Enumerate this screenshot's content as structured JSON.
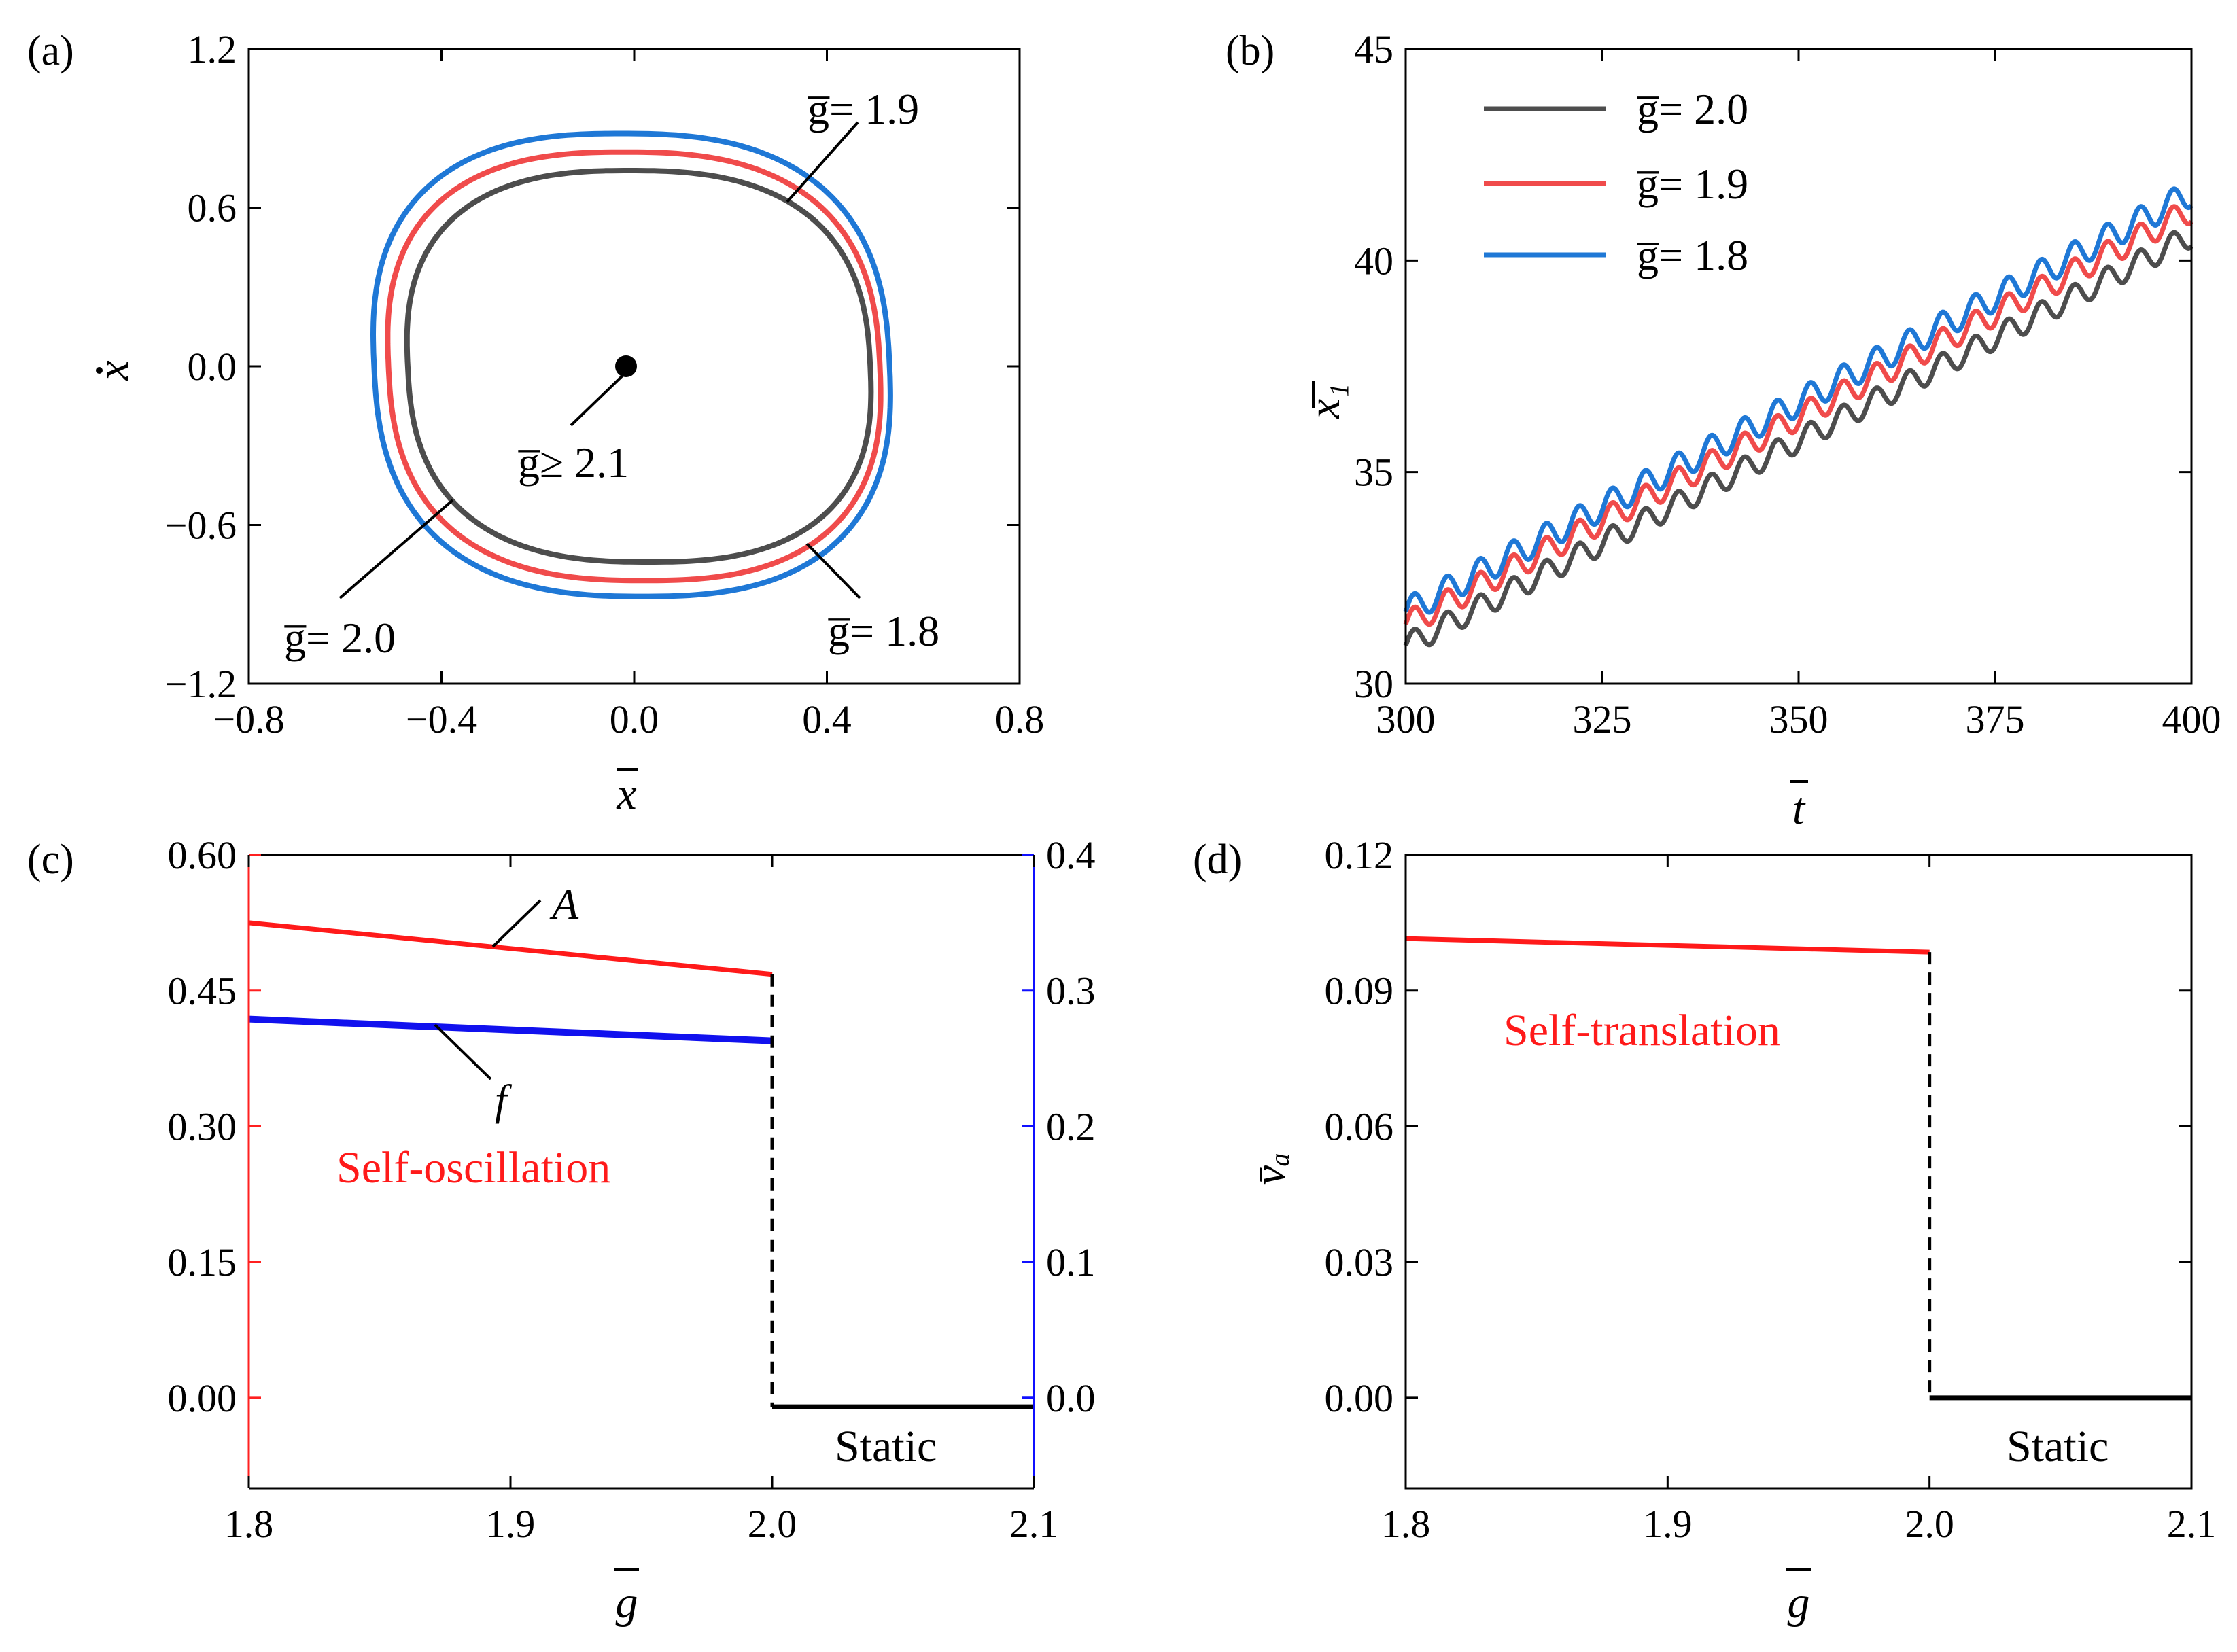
{
  "chart_data": [
    {
      "id": "a",
      "panel_label": "(a)",
      "type": "line",
      "description_kind": "phase-portrait",
      "xlabel": "x̄",
      "ylabel": "ẋ",
      "xlim": [
        -0.8,
        0.8
      ],
      "ylim": [
        -1.2,
        1.2
      ],
      "xticks": [
        "−0.8",
        "−0.4",
        "0.0",
        "0.4",
        "0.8"
      ],
      "yticks": [
        "−1.2",
        "−0.6",
        "0.0",
        "0.6",
        "1.2"
      ],
      "series": [
        {
          "name": "g = 2.0",
          "color": "#4d4d4d",
          "x_extent": [
            -0.47,
            0.49
          ],
          "y_extent": [
            -0.74,
            0.74
          ]
        },
        {
          "name": "g = 1.9",
          "color": "#f04b4b",
          "x_extent": [
            -0.51,
            0.51
          ],
          "y_extent": [
            -0.81,
            0.81
          ]
        },
        {
          "name": "g = 1.8",
          "color": "#1f78d6",
          "x_extent": [
            -0.54,
            0.53
          ],
          "y_extent": [
            -0.87,
            0.88
          ]
        }
      ],
      "fixed_point": {
        "x": 0.0,
        "y": 0.0
      },
      "annotations": [
        {
          "text": "g̅= 1.9"
        },
        {
          "text": "g̅≥ 2.1"
        },
        {
          "text": "g̅= 2.0"
        },
        {
          "text": "g̅= 1.8"
        }
      ]
    },
    {
      "id": "b",
      "panel_label": "(b)",
      "type": "line",
      "xlabel": "t̄",
      "ylabel": "x̄₁",
      "xlim": [
        300,
        400
      ],
      "ylim": [
        30,
        45
      ],
      "xticks": [
        "300",
        "325",
        "350",
        "375",
        "400"
      ],
      "yticks": [
        "30",
        "35",
        "40",
        "45"
      ],
      "oscillation_period": 4.2,
      "legend": [
        "g̅= 2.0",
        "g̅= 1.9",
        "g̅= 1.8"
      ],
      "legend_position": "top-left",
      "series": [
        {
          "name": "g̅= 2.0",
          "color": "#4d4d4d",
          "start": 30.9,
          "end": 40.6,
          "amplitude": 0.28
        },
        {
          "name": "g̅= 1.9",
          "color": "#f04b4b",
          "start": 31.4,
          "end": 41.2,
          "amplitude": 0.3
        },
        {
          "name": "g̅= 1.8",
          "color": "#1f78d6",
          "start": 31.7,
          "end": 41.6,
          "amplitude": 0.32
        }
      ]
    },
    {
      "id": "c",
      "panel_label": "(c)",
      "type": "line",
      "xlabel": "g",
      "xlim": [
        1.8,
        2.1
      ],
      "ylim_left": [
        -0.1,
        0.6
      ],
      "ylim_right": [
        -0.0667,
        0.4
      ],
      "xticks": [
        "1.8",
        "1.9",
        "2.0",
        "2.1"
      ],
      "yticks_left": [
        "0.60",
        "0.45",
        "0.30",
        "0.15",
        "0.00"
      ],
      "yticks_right": [
        "0.4",
        "0.3",
        "0.2",
        "0.1",
        "0.0"
      ],
      "left_axis_color": "#ff2020",
      "right_axis_color": "#1010ff",
      "series": [
        {
          "name": "A",
          "axis": "left",
          "color": "#ff1a1a",
          "x": [
            1.8,
            2.0
          ],
          "y": [
            0.525,
            0.468
          ]
        },
        {
          "name": "f",
          "axis": "right",
          "color": "#1111ee",
          "x": [
            1.8,
            2.0
          ],
          "y": [
            0.279,
            0.263
          ]
        },
        {
          "name": "static",
          "axis": "left",
          "color": "#000000",
          "x": [
            2.0,
            2.1
          ],
          "y": [
            -0.01,
            -0.01
          ]
        }
      ],
      "transition_x": 2.0,
      "labels": {
        "A": "A",
        "f": "f",
        "region": "Self-oscillation",
        "static": "Static"
      }
    },
    {
      "id": "d",
      "panel_label": "(d)",
      "type": "line",
      "xlabel": "g",
      "ylabel": "v̄ₐ",
      "xlim": [
        1.8,
        2.1
      ],
      "ylim": [
        -0.02,
        0.12
      ],
      "xticks": [
        "1.8",
        "1.9",
        "2.0",
        "2.1"
      ],
      "yticks": [
        "0.12",
        "0.09",
        "0.06",
        "0.03",
        "0.00"
      ],
      "series": [
        {
          "name": "self-translation",
          "color": "#ff1a1a",
          "x": [
            1.8,
            2.0
          ],
          "y": [
            0.1015,
            0.0985
          ]
        },
        {
          "name": "static",
          "color": "#000000",
          "x": [
            2.0,
            2.1
          ],
          "y": [
            0.0,
            0.0
          ]
        }
      ],
      "transition_x": 2.0,
      "labels": {
        "region": "Self-translation",
        "static": "Static"
      }
    }
  ]
}
